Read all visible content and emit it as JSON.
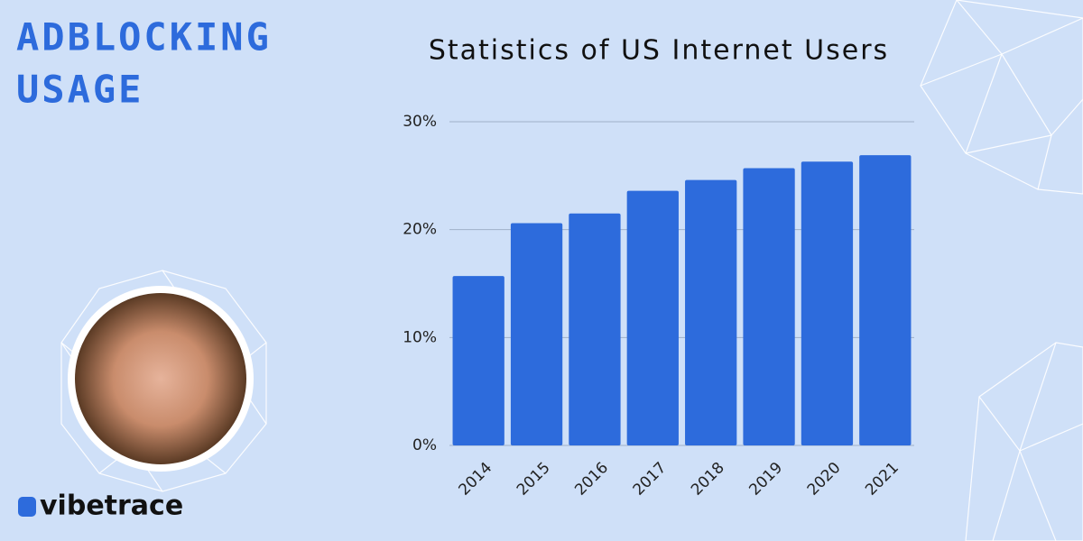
{
  "header": {
    "title_lines": [
      "ADBLOCKING",
      "USAGE"
    ]
  },
  "brand": "vibetrace",
  "chart_data": {
    "type": "bar",
    "title": "Statistics of US Internet Users",
    "categories": [
      "2014",
      "2015",
      "2016",
      "2017",
      "2018",
      "2019",
      "2020",
      "2021"
    ],
    "values": [
      15.7,
      20.6,
      21.5,
      23.6,
      24.6,
      25.7,
      26.3,
      26.9
    ],
    "color": "#2d6bdc",
    "ylim": [
      0,
      30
    ],
    "yticks": [
      {
        "value": 0,
        "label": "0%"
      },
      {
        "value": 10,
        "label": "10%"
      },
      {
        "value": 20,
        "label": "20%"
      },
      {
        "value": 30,
        "label": "30%"
      }
    ],
    "grid": true
  }
}
